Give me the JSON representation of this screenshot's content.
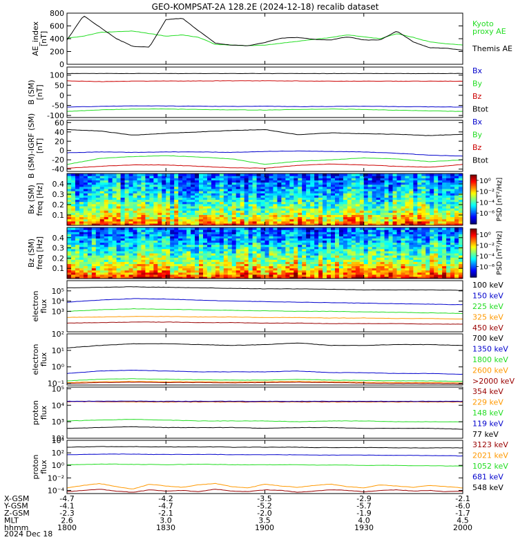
{
  "title": "GEO-KOMPSAT-2A 128.2E (2024-12-18) recalib dataset",
  "colors": {
    "black": "#000000",
    "blue": "#0000cc",
    "green": "#22dd22",
    "red": "#cc0000",
    "orange": "#ff9900",
    "darkred": "#990000"
  },
  "footer": {
    "rows": [
      {
        "label": "X-GSM",
        "values": [
          "-4.7",
          "-4.2",
          "-3.5",
          "-2.9",
          "-2.1"
        ]
      },
      {
        "label": "Y-GSM",
        "values": [
          "-4.1",
          "-4.7",
          "-5.2",
          "-5.7",
          "-6.0"
        ]
      },
      {
        "label": "Z-GSM",
        "values": [
          "-2.3",
          "-2.1",
          "-2.0",
          "-1.9",
          "-1.7"
        ]
      },
      {
        "label": "MLT",
        "values": [
          "2.6",
          "3.0",
          "3.5",
          "4.0",
          "4.5"
        ]
      },
      {
        "label": "hhmm",
        "values": [
          "1800",
          "1830",
          "1900",
          "1930",
          "2000"
        ]
      }
    ],
    "date": "2024 Dec 18"
  },
  "chart_data": [
    {
      "type": "line",
      "ylabel": "AE_index\n[nT]",
      "ylim": [
        0,
        800
      ],
      "ticks": [
        {
          "v": 0,
          "t": "0"
        },
        {
          "v": 200,
          "t": "200"
        },
        {
          "v": 400,
          "t": "400"
        },
        {
          "v": 600,
          "t": "600"
        },
        {
          "v": 800,
          "t": "800"
        }
      ],
      "x": [
        0,
        5,
        10,
        15,
        20,
        25,
        30,
        35,
        40,
        45,
        50,
        55,
        60,
        65,
        70,
        75,
        80,
        85,
        90,
        95,
        100,
        105,
        110,
        115,
        120
      ],
      "series": [
        {
          "name": "Kyoto\nproxy AE",
          "color": "green",
          "values": [
            410,
            440,
            500,
            510,
            520,
            480,
            440,
            460,
            420,
            310,
            300,
            290,
            300,
            330,
            360,
            390,
            420,
            460,
            430,
            400,
            480,
            420,
            350,
            320,
            300
          ]
        },
        {
          "name": "Themis AE",
          "color": "black",
          "values": [
            380,
            760,
            580,
            400,
            280,
            270,
            700,
            720,
            520,
            330,
            300,
            290,
            340,
            410,
            420,
            390,
            380,
            430,
            380,
            380,
            520,
            350,
            260,
            250,
            220
          ]
        }
      ]
    },
    {
      "type": "line",
      "ylabel": "B (SM)\n[nT]",
      "ylim": [
        -110,
        140
      ],
      "ticks": [
        {
          "v": -100,
          "t": "-100"
        },
        {
          "v": -50,
          "t": "-50"
        },
        {
          "v": 0,
          "t": "0"
        },
        {
          "v": 50,
          "t": "50"
        },
        {
          "v": 100,
          "t": "100"
        }
      ],
      "x": [
        0,
        10,
        20,
        30,
        40,
        50,
        60,
        70,
        80,
        90,
        100,
        110,
        120
      ],
      "series": [
        {
          "name": "Bx",
          "color": "blue",
          "values": [
            -58,
            -55,
            -52,
            -53,
            -54,
            -55,
            -54,
            -56,
            -55,
            -54,
            -56,
            -57,
            -58
          ]
        },
        {
          "name": "By",
          "color": "green",
          "values": [
            -80,
            -72,
            -68,
            -68,
            -70,
            -72,
            -73,
            -70,
            -68,
            -70,
            -74,
            -77,
            -80
          ]
        },
        {
          "name": "Bz",
          "color": "red",
          "values": [
            72,
            68,
            70,
            71,
            71,
            72,
            72,
            71,
            70,
            70,
            70,
            70,
            70
          ]
        },
        {
          "name": "Btot",
          "color": "black",
          "values": [
            108,
            108,
            108,
            108,
            108,
            108,
            108,
            108,
            108,
            108,
            108,
            108,
            108
          ]
        }
      ]
    },
    {
      "type": "line",
      "ylabel": "B (SM)-IGRF (SM)\n[nT]",
      "ylim": [
        -45,
        65
      ],
      "ticks": [
        {
          "v": -40,
          "t": "-40"
        },
        {
          "v": -20,
          "t": "-20"
        },
        {
          "v": 0,
          "t": "0"
        },
        {
          "v": 20,
          "t": "20"
        },
        {
          "v": 40,
          "t": "40"
        },
        {
          "v": 60,
          "t": "60"
        }
      ],
      "x": [
        0,
        10,
        20,
        30,
        40,
        50,
        60,
        70,
        80,
        90,
        100,
        110,
        120
      ],
      "series": [
        {
          "name": "Bx",
          "color": "blue",
          "values": [
            -5,
            -3,
            -4,
            -3,
            -3,
            -4,
            -2,
            -1,
            -2,
            -3,
            -6,
            -10,
            -12
          ]
        },
        {
          "name": "By",
          "color": "green",
          "values": [
            -30,
            -17,
            -13,
            -11,
            -14,
            -18,
            -30,
            -23,
            -20,
            -16,
            -18,
            -24,
            -20
          ]
        },
        {
          "name": "Bz",
          "color": "red",
          "values": [
            -38,
            -34,
            -31,
            -31,
            -34,
            -37,
            -38,
            -32,
            -29,
            -31,
            -34,
            -36,
            -30
          ]
        },
        {
          "name": "Btot",
          "color": "black",
          "values": [
            45,
            42,
            33,
            37,
            40,
            43,
            45,
            34,
            38,
            36,
            35,
            32,
            35
          ]
        }
      ]
    },
    {
      "type": "heatmap",
      "ylabel": "Bx (SM)\nfreq [Hz]",
      "ylim": [
        0,
        0.5
      ],
      "ticks": [
        {
          "v": 0.1,
          "t": "0.1"
        },
        {
          "v": 0.2,
          "t": "0.2"
        },
        {
          "v": 0.3,
          "t": "0.3"
        },
        {
          "v": 0.4,
          "t": "0.4"
        }
      ],
      "colorbar": {
        "label": "PSD [nT²/Hz]",
        "ticks": [
          {
            "v": 0,
            "t": "10⁰"
          },
          {
            "v": -2,
            "t": "10⁻²"
          },
          {
            "v": -4,
            "t": "10⁻⁴"
          },
          {
            "v": -6,
            "t": "10⁻⁶"
          }
        ]
      }
    },
    {
      "type": "heatmap",
      "ylabel": "Bz (SM)\nfreq [Hz]",
      "ylim": [
        0,
        0.5
      ],
      "ticks": [
        {
          "v": 0.1,
          "t": "0.1"
        },
        {
          "v": 0.2,
          "t": "0.2"
        },
        {
          "v": 0.3,
          "t": "0.3"
        },
        {
          "v": 0.4,
          "t": "0.4"
        }
      ],
      "colorbar": {
        "label": "PSD [nT²/Hz]",
        "ticks": [
          {
            "v": 0,
            "t": "10⁰"
          },
          {
            "v": -2,
            "t": "10⁻²"
          },
          {
            "v": -4,
            "t": "10⁻⁴"
          },
          {
            "v": -6,
            "t": "10⁻⁶"
          }
        ]
      }
    },
    {
      "type": "line",
      "log": true,
      "ylabel": "electron\nflux",
      "ylim": [
        1,
        6
      ],
      "ticks": [
        {
          "v": 3,
          "t": "10³"
        },
        {
          "v": 4,
          "t": "10⁴"
        },
        {
          "v": 5,
          "t": "10⁵"
        }
      ],
      "x": [
        0,
        10,
        20,
        30,
        40,
        50,
        60,
        70,
        80,
        90,
        100,
        110,
        120
      ],
      "series": [
        {
          "name": "100 keV",
          "color": "black",
          "values": [
            5.3,
            5.35,
            5.4,
            5.35,
            5.3,
            5.25,
            5.2,
            5.2,
            5.15,
            5.1,
            5.1,
            5.1,
            5.05
          ]
        },
        {
          "name": "150 keV",
          "color": "blue",
          "values": [
            3.9,
            4.1,
            4.25,
            4.2,
            4.1,
            4.0,
            3.95,
            3.9,
            3.85,
            3.8,
            3.75,
            3.7,
            3.65
          ]
        },
        {
          "name": "225 keV",
          "color": "green",
          "values": [
            3.0,
            3.15,
            3.25,
            3.2,
            3.15,
            3.1,
            3.05,
            3.0,
            3.0,
            2.95,
            2.9,
            2.85,
            2.8
          ]
        },
        {
          "name": "325 keV",
          "color": "orange",
          "values": [
            2.4,
            2.45,
            2.5,
            2.5,
            2.45,
            2.45,
            2.4,
            2.4,
            2.35,
            2.35,
            2.3,
            2.3,
            2.25
          ]
        },
        {
          "name": "450 keV",
          "color": "darkred",
          "values": [
            1.85,
            1.9,
            1.95,
            1.95,
            1.9,
            1.9,
            1.85,
            1.85,
            1.8,
            1.8,
            1.8,
            1.75,
            1.75
          ]
        }
      ]
    },
    {
      "type": "line",
      "log": true,
      "ylabel": "electron\nflux",
      "ylim": [
        -1.1,
        2
      ],
      "ticks": [
        {
          "v": -1,
          "t": "10⁻¹"
        },
        {
          "v": 0,
          "t": "10⁰"
        },
        {
          "v": 1,
          "t": "10¹"
        },
        {
          "v": 2,
          "t": "10²"
        }
      ],
      "x": [
        0,
        10,
        20,
        30,
        40,
        50,
        60,
        70,
        80,
        90,
        100,
        110,
        120
      ],
      "series": [
        {
          "name": "700 keV",
          "color": "black",
          "values": [
            1.15,
            1.3,
            1.4,
            1.4,
            1.35,
            1.3,
            1.35,
            1.45,
            1.3,
            1.3,
            1.35,
            1.35,
            1.3
          ]
        },
        {
          "name": "1350 keV",
          "color": "blue",
          "values": [
            -0.4,
            -0.25,
            -0.2,
            -0.25,
            -0.3,
            -0.3,
            -0.3,
            -0.25,
            -0.35,
            -0.35,
            -0.4,
            -0.4,
            -0.45
          ]
        },
        {
          "name": "1800 keV",
          "color": "green",
          "values": [
            -0.85,
            -0.75,
            -0.72,
            -0.75,
            -0.78,
            -0.8,
            -0.8,
            -0.75,
            -0.8,
            -0.82,
            -0.85,
            -0.85,
            -0.88
          ]
        },
        {
          "name": "2600 keV",
          "color": "orange",
          "values": [
            -0.95,
            -0.9,
            -0.88,
            -0.9,
            -0.9,
            -0.92,
            -0.9,
            -0.88,
            -0.9,
            -0.93,
            -0.95,
            -0.95,
            -0.97
          ]
        },
        {
          "name": ">2000 keV",
          "color": "darkred",
          "values": [
            -1.0,
            -0.95,
            -0.93,
            -0.95,
            -0.95,
            -0.97,
            -0.95,
            -0.93,
            -0.95,
            -0.98,
            -1.0,
            -1.0,
            -1.02
          ]
        }
      ]
    },
    {
      "type": "line",
      "log": true,
      "ylabel": "proton\nflux",
      "ylim": [
        2,
        5.1
      ],
      "ticks": [
        {
          "v": 2,
          "t": "10²"
        },
        {
          "v": 3,
          "t": "10³"
        },
        {
          "v": 4,
          "t": "10⁴"
        },
        {
          "v": 5,
          "t": "10⁵"
        }
      ],
      "x": [
        0,
        10,
        20,
        30,
        40,
        50,
        60,
        70,
        80,
        90,
        100,
        110,
        120
      ],
      "series": [
        {
          "name": "354 keV",
          "color": "darkred",
          "values": [
            4.22,
            4.22,
            4.2,
            4.2,
            4.2,
            4.2,
            4.2,
            4.2,
            4.2,
            4.2,
            4.2,
            4.2,
            4.2
          ]
        },
        {
          "name": "229 keV",
          "color": "orange",
          "values": [
            4.24,
            4.24,
            4.22,
            4.22,
            4.22,
            4.22,
            4.22,
            4.22,
            4.22,
            4.22,
            4.22,
            4.22,
            4.22
          ]
        },
        {
          "name": "148 keV",
          "color": "green",
          "values": [
            3.05,
            3.1,
            3.15,
            3.1,
            3.05,
            3.05,
            3.05,
            3.0,
            3.05,
            3.05,
            3.0,
            3.0,
            3.0
          ]
        },
        {
          "name": "119 keV",
          "color": "blue",
          "values": [
            4.24,
            4.25,
            4.25,
            4.24,
            4.24,
            4.24,
            4.24,
            4.24,
            4.24,
            4.24,
            4.24,
            4.24,
            4.24
          ]
        },
        {
          "name": "77 keV",
          "color": "black",
          "values": [
            2.6,
            2.65,
            2.7,
            2.65,
            2.65,
            2.65,
            2.6,
            2.65,
            2.65,
            2.6,
            2.6,
            2.6,
            2.55
          ]
        }
      ]
    },
    {
      "type": "line",
      "log": true,
      "ylabel": "proton\nflux",
      "ylim": [
        -4.5,
        4
      ],
      "ticks": [
        {
          "v": -4,
          "t": "10⁻⁴"
        },
        {
          "v": -2,
          "t": "10⁻²"
        },
        {
          "v": 0,
          "t": "10⁰"
        },
        {
          "v": 2,
          "t": "10²"
        },
        {
          "v": 4,
          "t": "10⁴"
        }
      ],
      "x": [
        0,
        5,
        10,
        15,
        20,
        25,
        30,
        35,
        40,
        45,
        50,
        55,
        60,
        65,
        70,
        75,
        80,
        85,
        90,
        95,
        100,
        105,
        110,
        115,
        120
      ],
      "series": [
        {
          "name": "3123 keV",
          "color": "darkred",
          "values": [
            -4.2,
            -4.0,
            -3.8,
            -4.1,
            -4.3,
            -3.9,
            -4.1,
            -4.0,
            -4.2,
            -3.8,
            -4.1,
            -4.2,
            -3.9,
            -4.0,
            -4.3,
            -4.1,
            -3.9,
            -4.0,
            -4.2,
            -4.0,
            -3.9,
            -4.1,
            -4.0,
            -4.2,
            -4.1
          ]
        },
        {
          "name": "2021 keV",
          "color": "orange",
          "values": [
            -3.6,
            -3.2,
            -2.9,
            -3.4,
            -3.8,
            -3.0,
            -3.3,
            -3.5,
            -3.1,
            -2.9,
            -3.4,
            -3.6,
            -3.0,
            -3.3,
            -3.5,
            -3.2,
            -3.0,
            -3.4,
            -3.6,
            -3.1,
            -3.3,
            -3.5,
            -3.2,
            -3.4,
            -3.6
          ]
        },
        {
          "name": "1052 keV",
          "color": "green",
          "values": [
            0.1,
            0.15,
            0.2,
            0.2,
            0.15,
            0.15,
            0.1,
            0.15,
            0.2,
            0.15,
            0.1,
            0.1,
            0.1,
            0.1,
            0.1,
            0.05,
            0.05,
            0.05,
            0.0,
            0.0,
            0.0,
            -0.05,
            -0.05,
            -0.1,
            -0.1
          ]
        },
        {
          "name": "681 keV",
          "color": "blue",
          "values": [
            1.7,
            1.75,
            1.8,
            1.8,
            1.8,
            1.75,
            1.75,
            1.75,
            1.75,
            1.75,
            1.7,
            1.7,
            1.7,
            1.7,
            1.7,
            1.65,
            1.65,
            1.65,
            1.65,
            1.6,
            1.6,
            1.6,
            1.55,
            1.55,
            1.5
          ]
        },
        {
          "name": "548 keV",
          "color": "black",
          "values": [
            2.9,
            2.95,
            3.0,
            3.0,
            3.0,
            2.95,
            2.95,
            2.95,
            2.95,
            2.95,
            2.9,
            2.9,
            2.9,
            2.9,
            2.9,
            2.85,
            2.85,
            2.85,
            2.85,
            2.85,
            2.8,
            2.8,
            2.8,
            2.8,
            2.8
          ]
        }
      ]
    }
  ]
}
